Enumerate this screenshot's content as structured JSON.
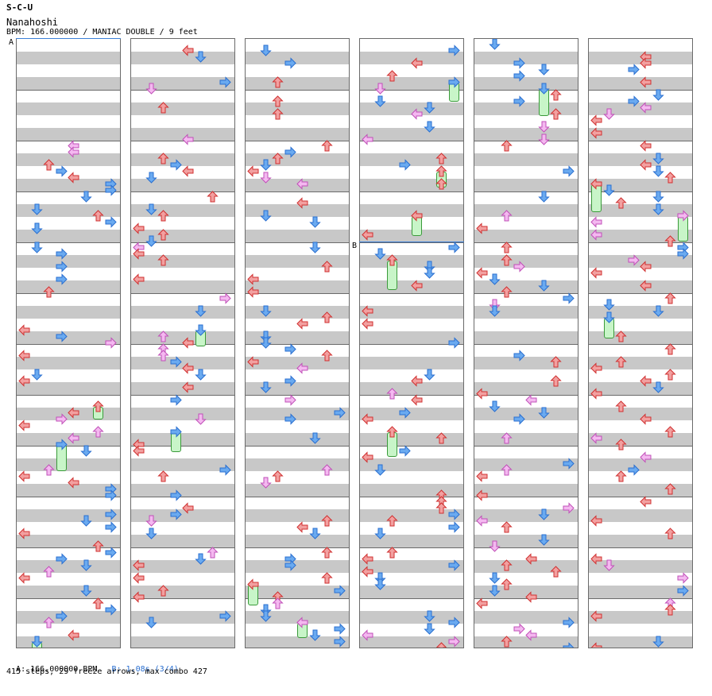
{
  "header": {
    "artist": "S-C-U",
    "title": "Nanahoshi",
    "info": "BPM: 166.000000 / MANIAC DOUBLE / 9 feet"
  },
  "markers": {
    "a": "A",
    "b": "B"
  },
  "footer": {
    "bpm_a": "A: 166.000000 BPM",
    "bpm_b": "B: 1.08s (3/4)",
    "stats": "415 steps, 29 freeze arrows, max combo 427"
  },
  "colors": {
    "red": "#f2a0a0",
    "blue": "#6aaaf0",
    "pink": "#f4b8f0",
    "green": "#c8f5c8",
    "grid_dark": "#c8c8c8",
    "bpm_line": "#3a7fd8"
  },
  "arrow_icons": [
    "left-arrow-icon",
    "down-arrow-icon",
    "up-arrow-icon",
    "right-arrow-icon"
  ],
  "columns": 6,
  "measures_per_column": 12,
  "step_count": 415,
  "freeze_count": 29,
  "max_combo": 427
}
